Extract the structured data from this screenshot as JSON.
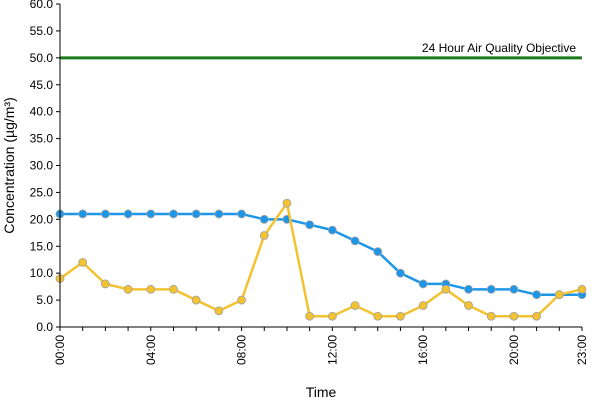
{
  "chart_data": {
    "type": "line",
    "title": "",
    "xlabel": "Time",
    "ylabel": "Concentration (µg/m³)",
    "ylim": [
      0,
      60
    ],
    "ytick_step": 5,
    "ytick_labels": [
      "0.0",
      "5.0",
      "10.0",
      "15.0",
      "20.0",
      "25.0",
      "30.0",
      "35.0",
      "40.0",
      "45.0",
      "50.0",
      "55.0",
      "60.0"
    ],
    "x": [
      0,
      1,
      2,
      3,
      4,
      5,
      6,
      7,
      8,
      9,
      10,
      11,
      12,
      13,
      14,
      15,
      16,
      17,
      18,
      19,
      20,
      21,
      22,
      23
    ],
    "xtick_labels": [
      {
        "x": 0,
        "label": "00:00"
      },
      {
        "x": 4,
        "label": "04:00"
      },
      {
        "x": 8,
        "label": "08:00"
      },
      {
        "x": 12,
        "label": "12:00"
      },
      {
        "x": 16,
        "label": "16:00"
      },
      {
        "x": 20,
        "label": "20:00"
      },
      {
        "x": 23,
        "label": "23:00"
      }
    ],
    "grid": false,
    "legend": "none",
    "series": [
      {
        "color": "#1E96E8",
        "values": [
          21,
          21,
          21,
          21,
          21,
          21,
          21,
          21,
          21,
          20,
          20,
          19,
          18,
          16,
          14,
          10,
          8,
          8,
          7,
          7,
          7,
          6,
          6,
          6
        ]
      },
      {
        "color": "#F2C230",
        "values": [
          9,
          12,
          8,
          7,
          7,
          7,
          5,
          3,
          5,
          17,
          23,
          2,
          2,
          4,
          2,
          2,
          4,
          7,
          4,
          2,
          2,
          2,
          6,
          7
        ]
      }
    ],
    "reference_line": {
      "value": 50,
      "label": "24 Hour Air Quality Objective",
      "color": "#1A7A1A"
    }
  }
}
